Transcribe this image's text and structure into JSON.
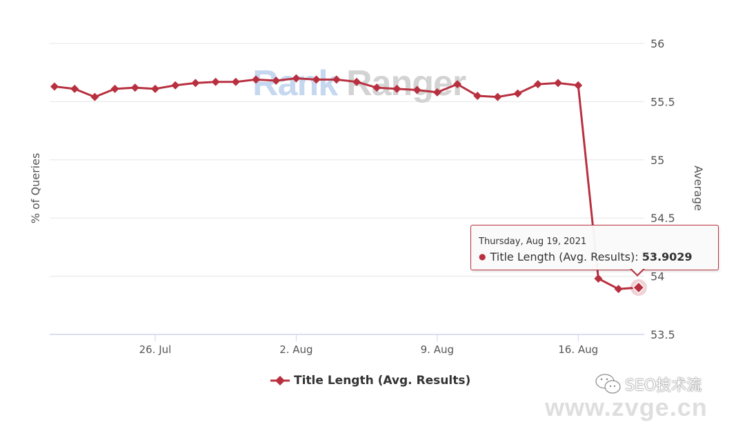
{
  "chart_data": {
    "type": "line",
    "title": "",
    "watermark": "RankRanger",
    "ylabel_left": "% of Queries",
    "ylabel_right": "Average",
    "xlabel": "",
    "ylim": [
      53.5,
      56
    ],
    "yticks": [
      "56",
      "55.5",
      "55",
      "54.5",
      "54",
      "53.5"
    ],
    "xticks": [
      "26. Jul",
      "2. Aug",
      "9. Aug",
      "16. Aug"
    ],
    "grid": true,
    "legend_position": "bottom",
    "series": [
      {
        "name": "Title Length (Avg. Results)",
        "color": "#b8303f",
        "marker": "diamond",
        "x": [
          "Jul 21",
          "Jul 22",
          "Jul 23",
          "Jul 24",
          "Jul 25",
          "Jul 26",
          "Jul 27",
          "Jul 28",
          "Jul 29",
          "Jul 30",
          "Jul 31",
          "Aug 1",
          "Aug 2",
          "Aug 3",
          "Aug 4",
          "Aug 5",
          "Aug 6",
          "Aug 7",
          "Aug 8",
          "Aug 9",
          "Aug 10",
          "Aug 11",
          "Aug 12",
          "Aug 13",
          "Aug 14",
          "Aug 15",
          "Aug 16",
          "Aug 17",
          "Aug 18",
          "Aug 19"
        ],
        "values": [
          55.63,
          55.61,
          55.54,
          55.61,
          55.62,
          55.61,
          55.64,
          55.66,
          55.67,
          55.67,
          55.69,
          55.68,
          55.7,
          55.69,
          55.69,
          55.67,
          55.62,
          55.61,
          55.6,
          55.58,
          55.65,
          55.55,
          55.54,
          55.57,
          55.65,
          55.66,
          55.64,
          53.98,
          53.89,
          53.9029
        ]
      }
    ]
  },
  "tooltip": {
    "date": "Thursday, Aug 19, 2021",
    "series_label": "Title Length (Avg. Results):",
    "value": "53.9029"
  },
  "legend": {
    "label": "Title Length (Avg. Results)"
  },
  "watermarks": {
    "logo_part1": "Rank",
    "logo_part2": "Ranger",
    "corner_text": "SEO技术流",
    "url": "www.zvge.cn"
  }
}
